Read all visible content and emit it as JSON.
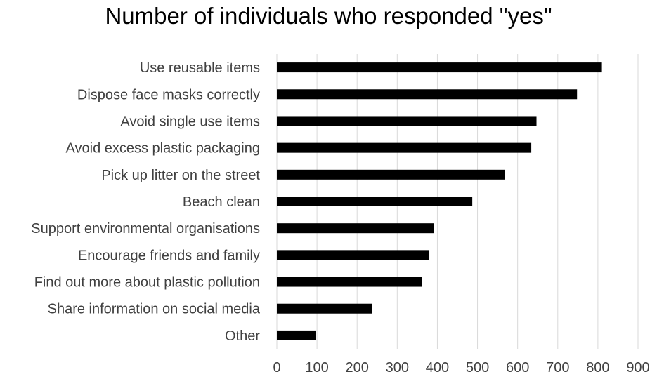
{
  "chart_data": {
    "type": "bar",
    "orientation": "horizontal",
    "title": "Number of individuals who responded \"yes\"",
    "xlabel": "",
    "ylabel": "",
    "categories": [
      "Use reusable items",
      "Dispose face masks correctly",
      "Avoid single use items",
      "Avoid excess plastic packaging",
      "Pick up litter on the street",
      "Beach clean",
      "Support environmental organisations",
      "Encourage friends and family",
      "Find out more about plastic pollution",
      "Share information on social media",
      "Other"
    ],
    "values": [
      810,
      748,
      647,
      634,
      568,
      487,
      392,
      380,
      361,
      237,
      97
    ],
    "xlim": [
      0,
      900
    ],
    "xticks": [
      0,
      100,
      200,
      300,
      400,
      500,
      600,
      700,
      800,
      900
    ],
    "grid": "vertical",
    "legend": "none",
    "bar_color": "#000000",
    "grid_color": "#d9d9d9"
  }
}
